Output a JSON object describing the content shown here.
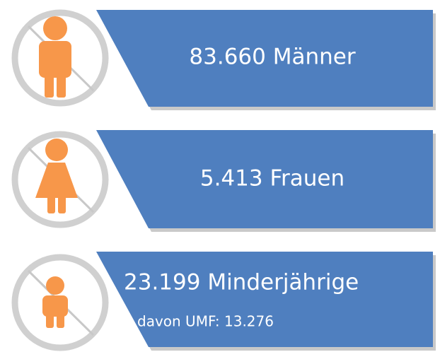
{
  "items": [
    {
      "label": "83.660 Männer"
    },
    {
      "label": "5.413 Frauen"
    },
    {
      "label": "23.199 Minderjährige",
      "detail": "davon UMF: 13.276"
    }
  ]
}
